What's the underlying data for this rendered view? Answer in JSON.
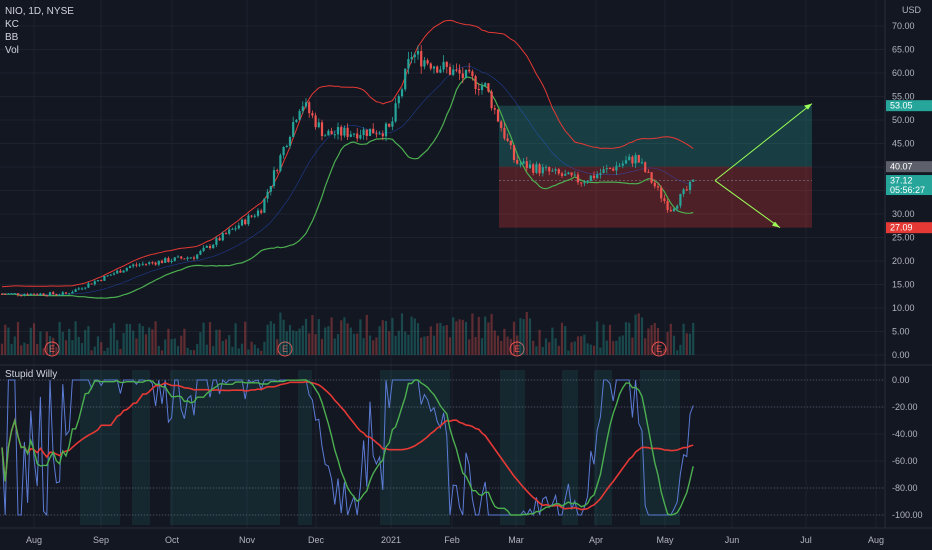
{
  "legend": {
    "symbol_line": "NIO, 1D, NYSE",
    "kc": "KC",
    "bb": "BB",
    "vol": "Vol",
    "oscillator": "Stupid Willy"
  },
  "price_axis": {
    "currency": "USD",
    "ticks": [
      "70.00",
      "65.00",
      "60.00",
      "55.00",
      "50.00",
      "45.00",
      "40.00",
      "35.00",
      "30.00",
      "25.00",
      "20.00",
      "15.00",
      "10.00",
      "5.00",
      "0.00"
    ]
  },
  "osc_axis": {
    "ticks": [
      "0.00",
      "-20.00",
      "-40.00",
      "-60.00",
      "-80.00",
      "-100.00"
    ]
  },
  "time_axis": {
    "labels": [
      "Aug",
      "Sep",
      "Oct",
      "Nov",
      "Dec",
      "2021",
      "Feb",
      "Mar",
      "Apr",
      "May",
      "Jun",
      "Jul",
      "Aug"
    ]
  },
  "price_tags": {
    "target": {
      "label": "53.05",
      "color": "#26a69a"
    },
    "entry": {
      "label": "40.07",
      "color": "#5d606b"
    },
    "current": {
      "label": "37.12",
      "sublabel": "05:56:27",
      "color": "#26a69a"
    },
    "stop": {
      "label": "27.09",
      "color": "#e53935"
    }
  },
  "earnings_markers": [
    "E",
    "E",
    "E",
    "E"
  ],
  "colors": {
    "background": "#131722",
    "up": "#26a69a",
    "down": "#ef5350",
    "kc_band": "#e53935",
    "bb_band": "#4caf50",
    "osc_line": "#5b7bd5",
    "osc_signal": "#4caf50",
    "osc_slow": "#e53935"
  },
  "chart_data": {
    "type": "candlestick",
    "title": "NIO, 1D, NYSE",
    "x": [
      "2020-08",
      "2020-09",
      "2020-10",
      "2020-11",
      "2020-12",
      "2021-01",
      "2021-02",
      "2021-03",
      "2021-04",
      "2021-05",
      "2021-06",
      "2021-07",
      "2021-08"
    ],
    "ylim": [
      0,
      72
    ],
    "price_close_approx": [
      {
        "date": "2020-08-01",
        "close": 13
      },
      {
        "date": "2020-09-01",
        "close": 19
      },
      {
        "date": "2020-10-01",
        "close": 21
      },
      {
        "date": "2020-11-01",
        "close": 31
      },
      {
        "date": "2020-11-20",
        "close": 54
      },
      {
        "date": "2020-12-01",
        "close": 47
      },
      {
        "date": "2021-01-01",
        "close": 48
      },
      {
        "date": "2021-01-11",
        "close": 64
      },
      {
        "date": "2021-02-01",
        "close": 60
      },
      {
        "date": "2021-02-15",
        "close": 57
      },
      {
        "date": "2021-03-01",
        "close": 41
      },
      {
        "date": "2021-04-01",
        "close": 37
      },
      {
        "date": "2021-04-27",
        "close": 42
      },
      {
        "date": "2021-05-13",
        "close": 31
      },
      {
        "date": "2021-05-25",
        "close": 37.12
      }
    ],
    "trade_plan": {
      "entry": 40.07,
      "target": 53.05,
      "stop": 27.09,
      "current": 37.12
    },
    "oscillator": {
      "name": "Stupid Willy",
      "ylim": [
        -100,
        0
      ],
      "levels": [
        0,
        -20,
        -80,
        -100
      ]
    }
  }
}
